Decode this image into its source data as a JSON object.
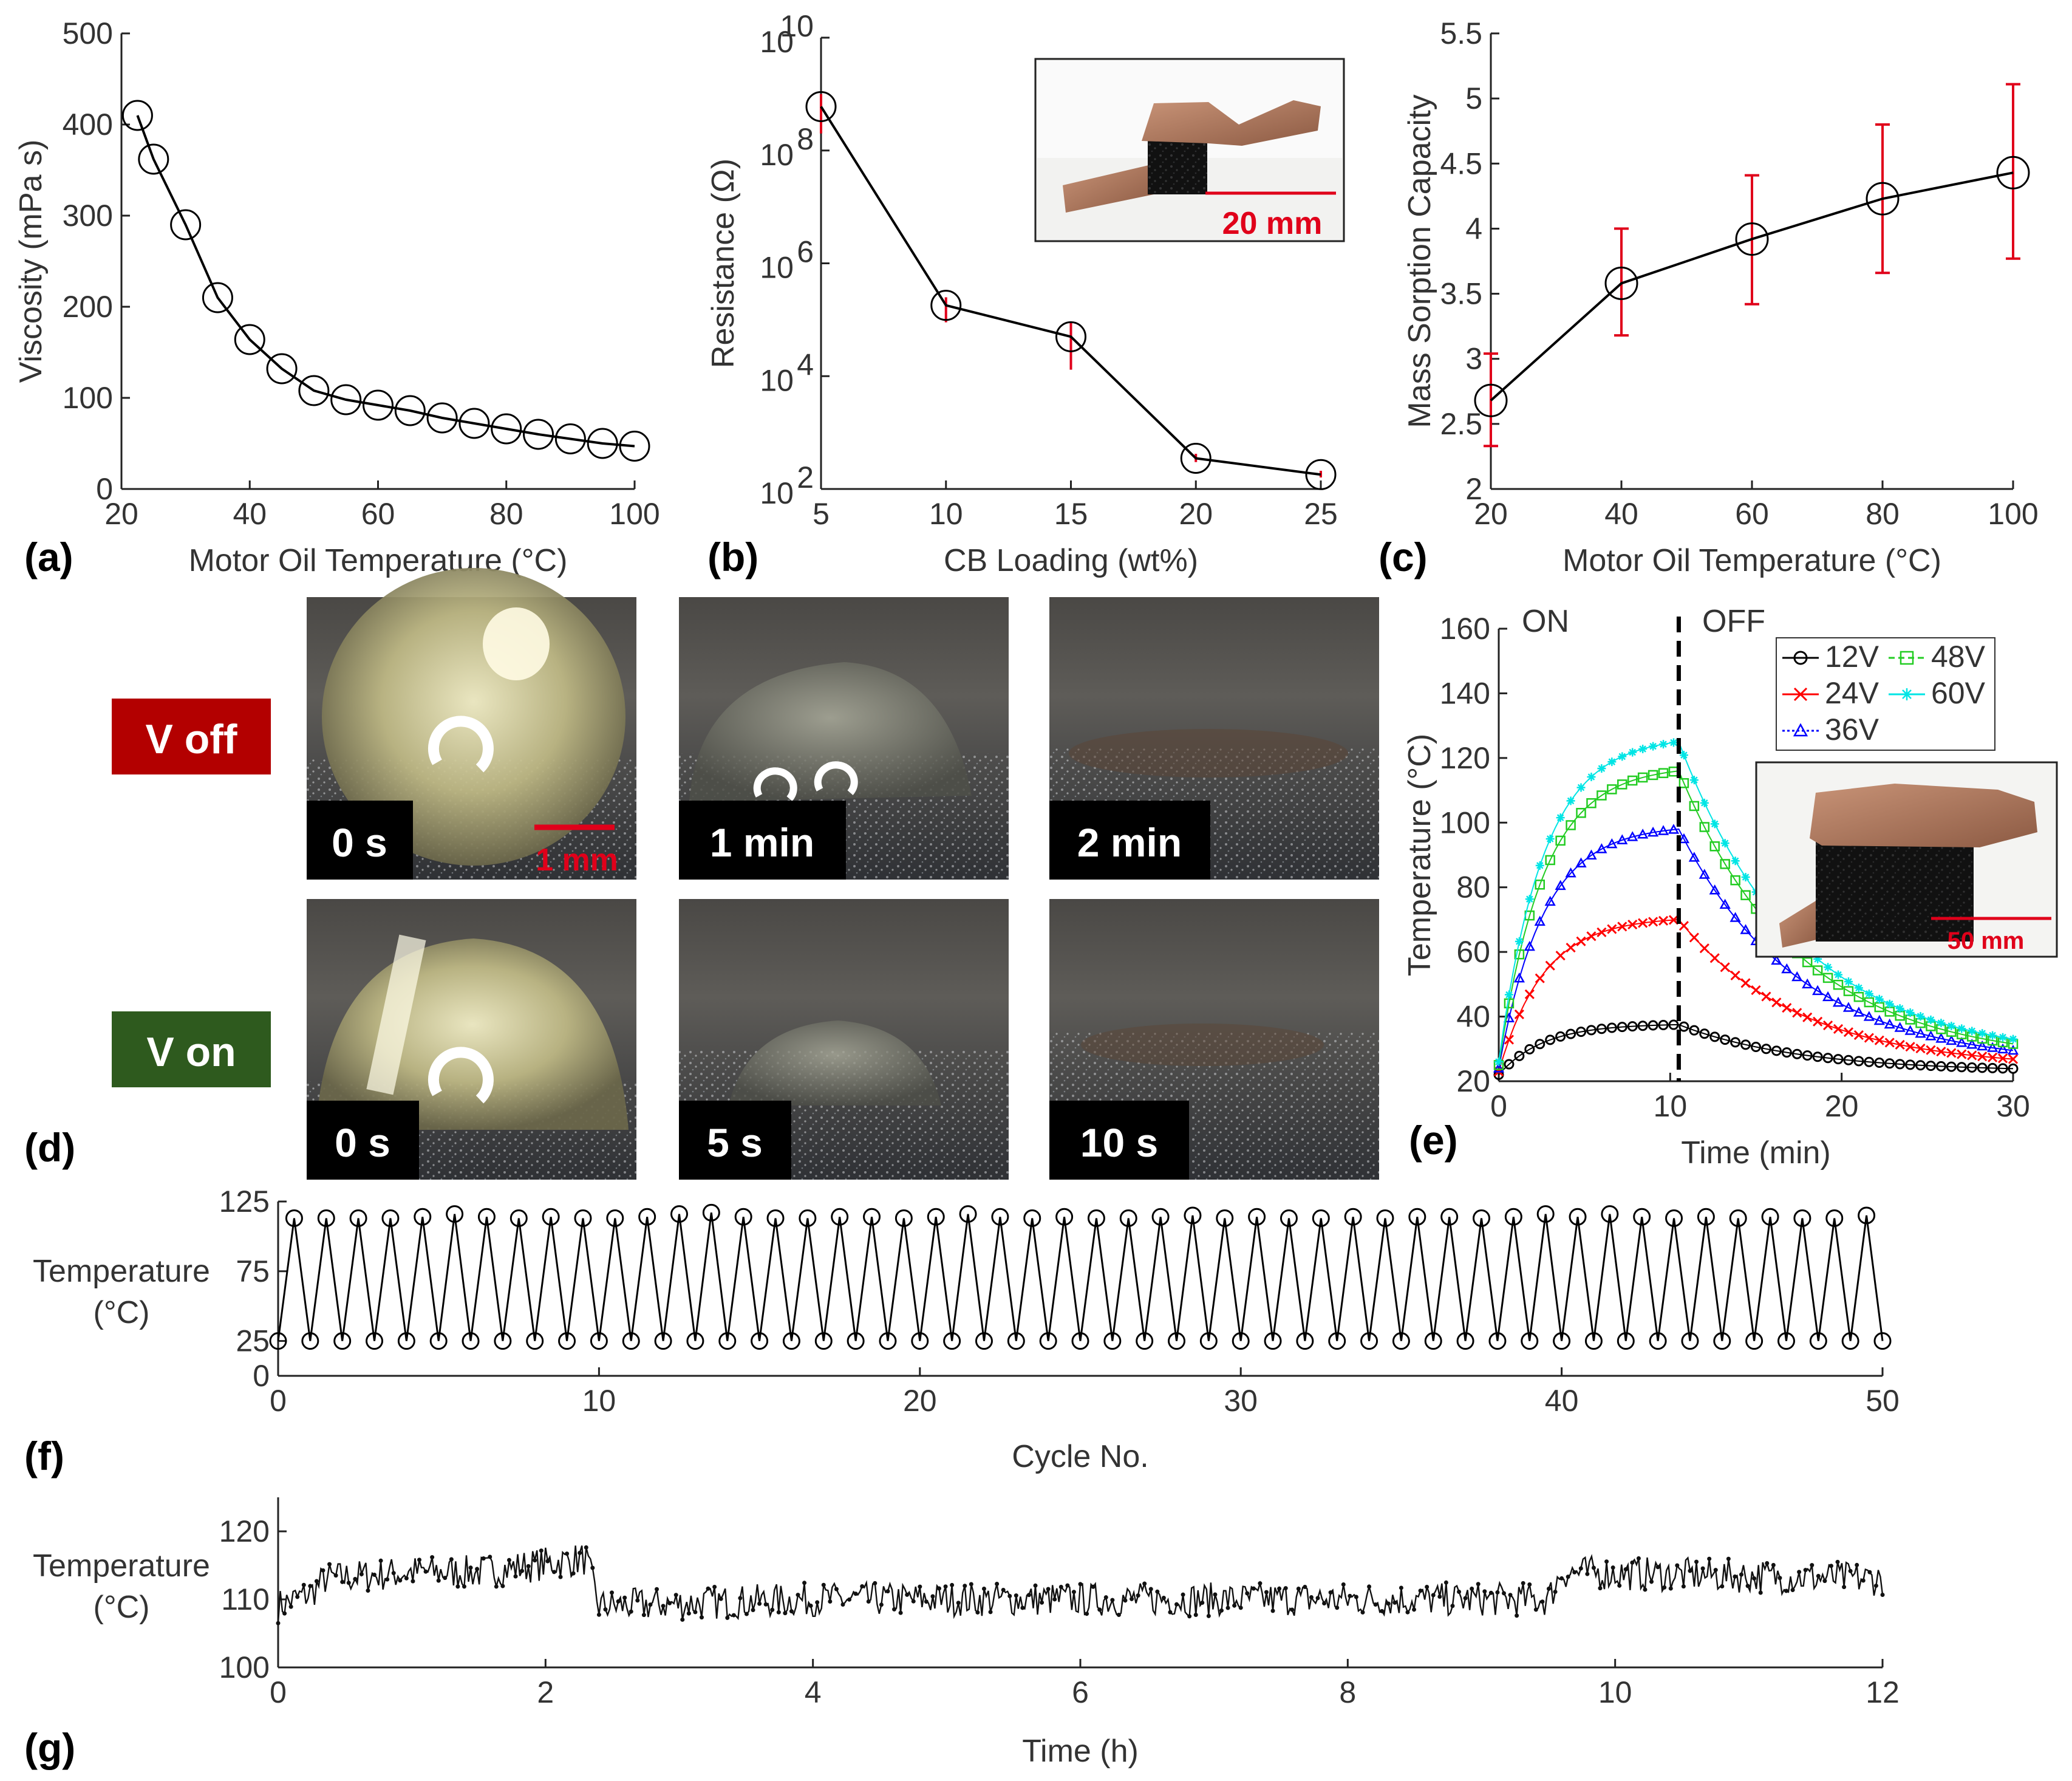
{
  "chart_data": [
    {
      "panel": "(a)",
      "type": "line",
      "xlabel": "Motor Oil Temperature (°C)",
      "ylabel": "Viscosity (mPa s)",
      "xlim": [
        20,
        100
      ],
      "ylim": [
        0,
        500
      ],
      "xticks": [
        "20",
        "40",
        "60",
        "80",
        "100"
      ],
      "yticks": [
        "0",
        "100",
        "200",
        "300",
        "400",
        "500"
      ],
      "x": [
        22.5,
        25,
        30,
        35,
        40,
        45,
        50,
        55,
        60,
        65,
        70,
        75,
        80,
        85,
        90,
        95,
        100
      ],
      "y": [
        410,
        362,
        290,
        210,
        164,
        132,
        108,
        98,
        92,
        86,
        78,
        72,
        66,
        60,
        55,
        50,
        47
      ]
    },
    {
      "panel": "(b)",
      "type": "line",
      "scale": "log-y",
      "xlabel": "CB Loading (wt%)",
      "ylabel": "Resistance (Ω)",
      "xlim": [
        5,
        25
      ],
      "ylim": [
        100,
        10000000000
      ],
      "xticks": [
        "5",
        "10",
        "15",
        "20",
        "25"
      ],
      "yticks": [
        {
          "base": "10",
          "exp": "2"
        },
        {
          "base": "10",
          "exp": "4"
        },
        {
          "base": "10",
          "exp": "6"
        },
        {
          "base": "10",
          "exp": "8"
        },
        {
          "base": "10",
          "exp": "10"
        }
      ],
      "x": [
        5,
        10,
        15,
        20,
        25
      ],
      "y": [
        600000000,
        180000,
        50000,
        350,
        180
      ],
      "error_low": [
        200000000,
        90000,
        13000,
        300,
        160
      ],
      "error_high": [
        1000000000,
        250000,
        90000,
        420,
        210
      ],
      "inset_scale_label": "20 mm"
    },
    {
      "panel": "(c)",
      "type": "line",
      "xlabel": "Motor Oil Temperature (°C)",
      "ylabel": "Mass Sorption Capacity",
      "xlim": [
        20,
        100
      ],
      "ylim": [
        2,
        5.5
      ],
      "xticks": [
        "20",
        "40",
        "60",
        "80",
        "100"
      ],
      "yticks": [
        "2",
        "2.5",
        "3",
        "3.5",
        "4",
        "4.5",
        "5",
        "5.5"
      ],
      "x": [
        20,
        40,
        60,
        80,
        100
      ],
      "y": [
        2.68,
        3.58,
        3.92,
        4.23,
        4.43
      ],
      "error_low": [
        2.33,
        3.18,
        3.42,
        3.66,
        3.77
      ],
      "error_high": [
        3.04,
        4.0,
        4.41,
        4.8,
        5.11
      ]
    },
    {
      "panel": "(e)",
      "type": "line",
      "xlabel": "Time (min)",
      "ylabel": "Temperature (°C)",
      "xlim": [
        0,
        30
      ],
      "ylim": [
        20,
        160
      ],
      "xticks": [
        "0",
        "10",
        "20",
        "30"
      ],
      "yticks": [
        "20",
        "40",
        "60",
        "80",
        "100",
        "120",
        "140",
        "160"
      ],
      "annotations": [
        "ON",
        "OFF"
      ],
      "switch_time": 10.5,
      "inset_scale_label": "50 mm",
      "series": [
        {
          "name": "12V",
          "color": "#000000",
          "marker": "o",
          "on_end": 37.5,
          "initial": 22
        },
        {
          "name": "24V",
          "color": "#ff0000",
          "marker": "x",
          "on_end": 70,
          "initial": 23
        },
        {
          "name": "36V",
          "color": "#0000ff",
          "marker": "triangle",
          "on_end": 98,
          "initial": 24
        },
        {
          "name": "48V",
          "color": "#22cc22",
          "marker": "square",
          "on_end": 116,
          "initial": 25
        },
        {
          "name": "60V",
          "color": "#00e5e5",
          "marker": "star",
          "on_end": 125,
          "initial": 26
        }
      ]
    },
    {
      "panel": "(f)",
      "type": "line",
      "xlabel": "Cycle No.",
      "ylabel_lines": [
        "Temperature",
        "(°C)"
      ],
      "xlim": [
        0,
        50
      ],
      "ylim": [
        0,
        125
      ],
      "xticks": [
        "0",
        "10",
        "20",
        "30",
        "40",
        "50"
      ],
      "yticks": [
        "0",
        "25",
        "75",
        "125"
      ],
      "cycles": 50,
      "low_value": 25,
      "peak_values": [
        113,
        113,
        113,
        113,
        114,
        116,
        114,
        113,
        114,
        113,
        113,
        114,
        116,
        117,
        114,
        113,
        113,
        114,
        114,
        113,
        114,
        116,
        114,
        113,
        114,
        113,
        113,
        114,
        115,
        113,
        114,
        113,
        113,
        114,
        113,
        114,
        114,
        113,
        114,
        116,
        114,
        116,
        114,
        113,
        114,
        113,
        114,
        113,
        113,
        115
      ]
    },
    {
      "panel": "(g)",
      "type": "line",
      "xlabel": "Time (h)",
      "ylabel_lines": [
        "Temperature",
        "(°C)"
      ],
      "xlim": [
        0,
        12
      ],
      "ylim": [
        100,
        125
      ],
      "xticks": [
        "0",
        "2",
        "4",
        "6",
        "8",
        "10",
        "12"
      ],
      "yticks": [
        "100",
        "110",
        "120"
      ],
      "baseline": [
        {
          "t": 0.0,
          "v": 109
        },
        {
          "t": 0.25,
          "v": 111
        },
        {
          "t": 0.35,
          "v": 113
        },
        {
          "t": 1.0,
          "v": 114
        },
        {
          "t": 1.5,
          "v": 114
        },
        {
          "t": 2.3,
          "v": 116
        },
        {
          "t": 2.4,
          "v": 109
        },
        {
          "t": 4.0,
          "v": 110
        },
        {
          "t": 8.0,
          "v": 110
        },
        {
          "t": 9.5,
          "v": 110
        },
        {
          "t": 9.6,
          "v": 114
        },
        {
          "t": 12.0,
          "v": 113
        }
      ],
      "noise_amplitude": 2.5
    }
  ],
  "panel_labels": {
    "a": "(a)",
    "b": "(b)",
    "c": "(c)",
    "d": "(d)",
    "e": "(e)",
    "f": "(f)",
    "g": "(g)"
  },
  "photo_panel_d": {
    "row_labels": {
      "off": "V off",
      "on": "V on"
    },
    "row_colors": {
      "off": "#b30000",
      "on": "#2e5a1e"
    },
    "off_times": [
      "0 s",
      "1 min",
      "2 min"
    ],
    "on_times": [
      "0 s",
      "5 s",
      "10 s"
    ],
    "scale_bar_label": "1 mm"
  }
}
